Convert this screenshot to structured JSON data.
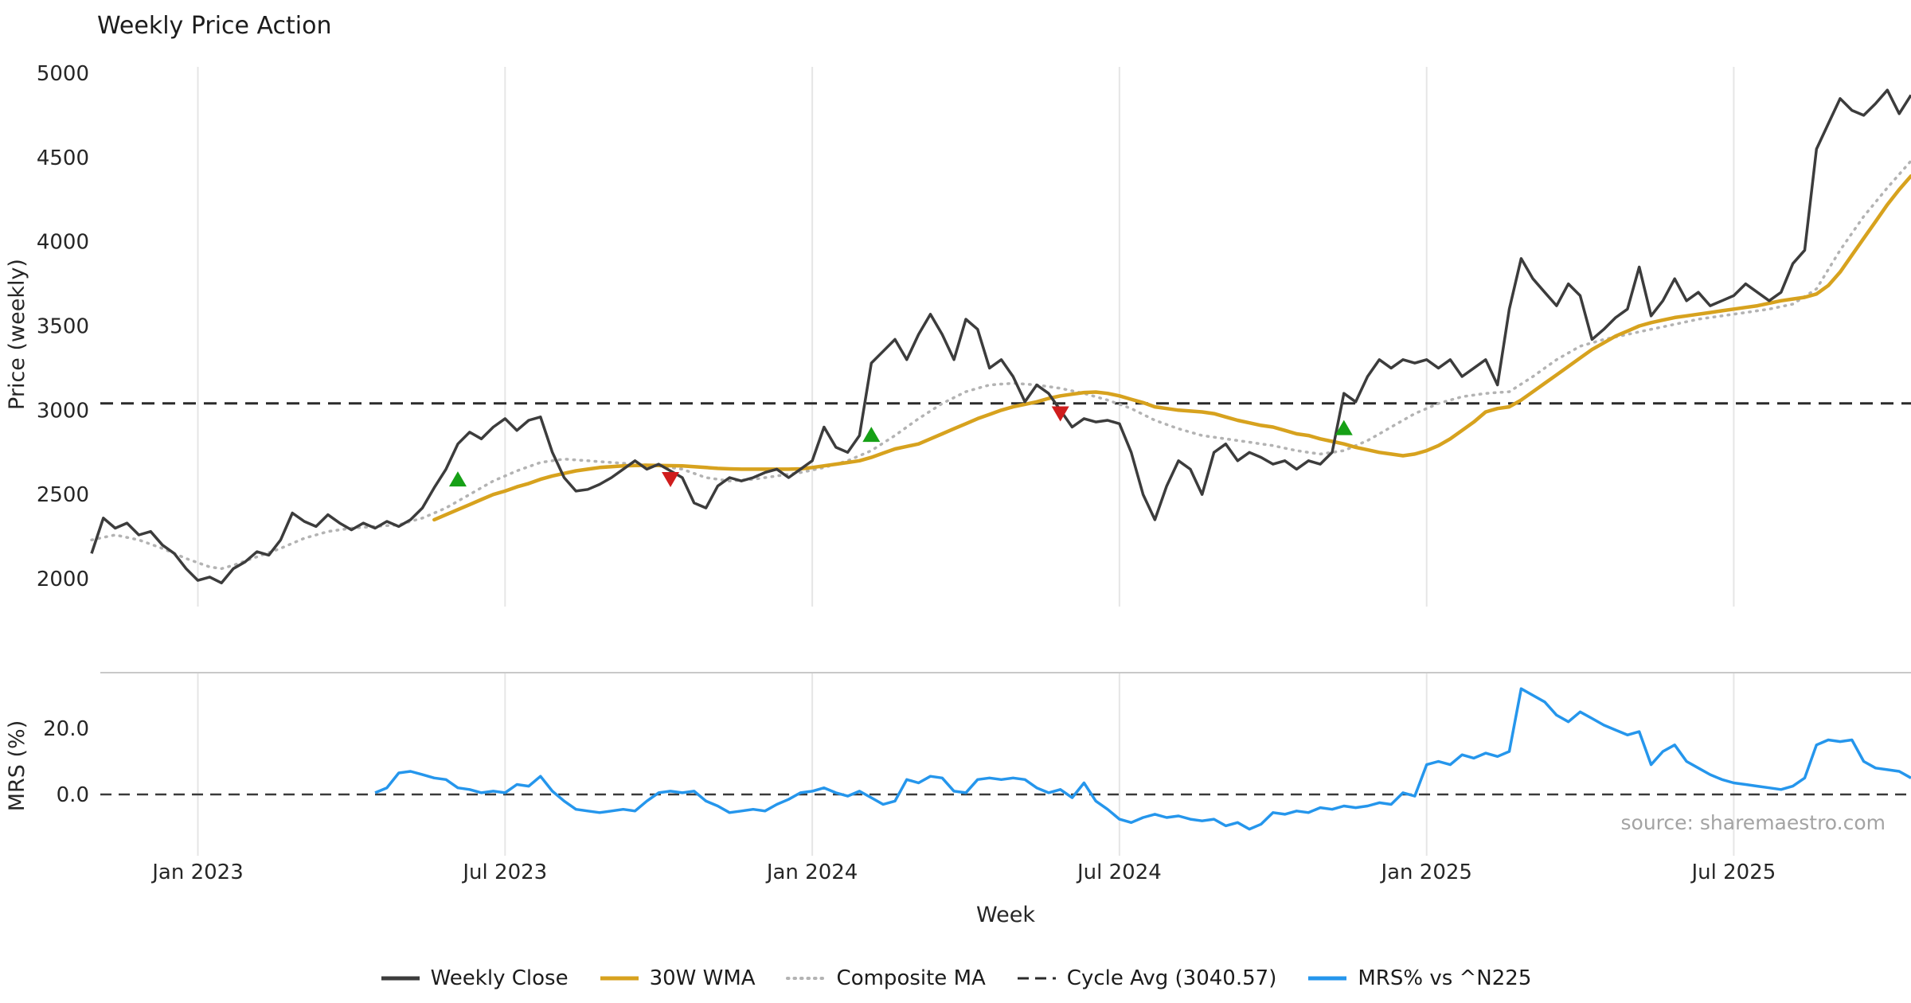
{
  "title": "Weekly Price Action",
  "axes": {
    "price_axis_label": "Price (weekly)",
    "mrs_axis_label": "MRS (%)",
    "x_axis_label": "Week"
  },
  "source_text": "source: sharemaestro.com",
  "colors": {
    "weekly_close": "#3c3c3c",
    "wma_30w": "#d7a21e",
    "composite_ma": "#b3b3b3",
    "cycle_avg": "#2b2b2b",
    "mrs": "#2596ec",
    "buy_marker": "#16a016",
    "sell_marker": "#cf1d1d",
    "grid": "#e6e6e6",
    "panel_border": "#c9c9c9",
    "zero_line": "#3a3a3a",
    "tick_text": "#262626",
    "source_color": "#a3a3a3"
  },
  "legend": {
    "items": [
      {
        "key": "weekly-close",
        "label": "Weekly Close",
        "style": "solid",
        "color_key": "weekly_close"
      },
      {
        "key": "wma-30w",
        "label": "30W WMA",
        "style": "solid",
        "color_key": "wma_30w"
      },
      {
        "key": "composite-ma",
        "label": "Composite MA",
        "style": "dotted",
        "color_key": "composite_ma"
      },
      {
        "key": "cycle-avg",
        "label": "Cycle Avg (3040.57)",
        "style": "dashed",
        "color_key": "cycle_avg"
      },
      {
        "key": "mrs",
        "label": "MRS% vs ^N225",
        "style": "solid",
        "color_key": "mrs"
      }
    ]
  },
  "chart_data": {
    "type": "line",
    "x_unit": "week_index",
    "n_weeks": 155,
    "grid": "vertical-only",
    "legend_position": "bottom-center",
    "x_ticks": [
      {
        "label": "Jan 2023",
        "week": 9
      },
      {
        "label": "Jul 2023",
        "week": 35
      },
      {
        "label": "Jan 2024",
        "week": 61
      },
      {
        "label": "Jul 2024",
        "week": 87
      },
      {
        "label": "Jan 2025",
        "week": 113
      },
      {
        "label": "Jul 2025",
        "week": 139
      }
    ],
    "price_panel": {
      "ylabel": "Price (weekly)",
      "ylim": [
        1900,
        5060
      ],
      "yticks": [
        2000,
        2500,
        3000,
        3500,
        4000,
        4500,
        5000
      ],
      "cycle_avg": 3040.57,
      "series": [
        {
          "name": "Weekly Close",
          "start_week": 0,
          "values": [
            2150,
            2360,
            2300,
            2330,
            2260,
            2280,
            2200,
            2150,
            2060,
            1990,
            2010,
            1975,
            2060,
            2100,
            2160,
            2140,
            2230,
            2390,
            2340,
            2310,
            2380,
            2330,
            2290,
            2330,
            2300,
            2340,
            2310,
            2350,
            2420,
            2540,
            2650,
            2800,
            2870,
            2830,
            2900,
            2950,
            2880,
            2940,
            2960,
            2750,
            2600,
            2520,
            2530,
            2560,
            2600,
            2650,
            2700,
            2650,
            2680,
            2640,
            2600,
            2450,
            2420,
            2550,
            2600,
            2580,
            2600,
            2630,
            2650,
            2600,
            2650,
            2700,
            2900,
            2780,
            2750,
            2850,
            3280,
            3350,
            3420,
            3300,
            3450,
            3570,
            3450,
            3300,
            3540,
            3480,
            3250,
            3300,
            3200,
            3050,
            3150,
            3100,
            3000,
            2900,
            2950,
            2930,
            2940,
            2920,
            2750,
            2500,
            2350,
            2550,
            2700,
            2650,
            2500,
            2750,
            2800,
            2700,
            2750,
            2720,
            2680,
            2700,
            2650,
            2700,
            2680,
            2750,
            3100,
            3050,
            3200,
            3300,
            3250,
            3300,
            3280,
            3300,
            3250,
            3300,
            3200,
            3250,
            3300,
            3150,
            3600,
            3900,
            3780,
            3700,
            3620,
            3750,
            3680,
            3420,
            3480,
            3550,
            3600,
            3850,
            3560,
            3650,
            3780,
            3650,
            3700,
            3620,
            3650,
            3680,
            3750,
            3700,
            3650,
            3700,
            3870,
            3950,
            4550,
            4700,
            4850,
            4780,
            4750,
            4820,
            4900,
            4760,
            4870
          ]
        },
        {
          "name": "30W WMA",
          "start_week": 29,
          "values": [
            2350,
            2380,
            2410,
            2440,
            2470,
            2500,
            2520,
            2545,
            2565,
            2590,
            2610,
            2625,
            2640,
            2650,
            2660,
            2665,
            2670,
            2672,
            2673,
            2672,
            2671,
            2670,
            2665,
            2660,
            2655,
            2652,
            2650,
            2650,
            2650,
            2650,
            2650,
            2652,
            2660,
            2670,
            2680,
            2690,
            2700,
            2720,
            2745,
            2770,
            2785,
            2800,
            2830,
            2860,
            2890,
            2920,
            2950,
            2975,
            3000,
            3020,
            3035,
            3050,
            3070,
            3085,
            3095,
            3105,
            3108,
            3100,
            3085,
            3065,
            3045,
            3020,
            3010,
            3000,
            2995,
            2990,
            2980,
            2960,
            2940,
            2925,
            2910,
            2900,
            2880,
            2860,
            2850,
            2830,
            2815,
            2800,
            2780,
            2765,
            2750,
            2740,
            2730,
            2740,
            2760,
            2790,
            2830,
            2880,
            2930,
            2990,
            3010,
            3020,
            3060,
            3110,
            3160,
            3210,
            3260,
            3310,
            3360,
            3400,
            3440,
            3470,
            3500,
            3520,
            3535,
            3550,
            3560,
            3570,
            3580,
            3590,
            3600,
            3610,
            3620,
            3635,
            3650,
            3660,
            3670,
            3690,
            3740,
            3820,
            3920,
            4020,
            4120,
            4220,
            4310,
            4390
          ]
        },
        {
          "name": "Composite MA",
          "start_week": 0,
          "values": [
            2230,
            2245,
            2260,
            2245,
            2230,
            2205,
            2180,
            2150,
            2120,
            2095,
            2070,
            2060,
            2080,
            2105,
            2130,
            2155,
            2180,
            2210,
            2240,
            2260,
            2280,
            2290,
            2300,
            2305,
            2310,
            2315,
            2320,
            2340,
            2360,
            2390,
            2420,
            2460,
            2500,
            2540,
            2580,
            2610,
            2640,
            2665,
            2690,
            2700,
            2710,
            2705,
            2700,
            2695,
            2690,
            2685,
            2680,
            2675,
            2670,
            2660,
            2650,
            2625,
            2600,
            2590,
            2580,
            2585,
            2590,
            2600,
            2610,
            2620,
            2630,
            2645,
            2660,
            2680,
            2700,
            2730,
            2760,
            2805,
            2850,
            2900,
            2950,
            2995,
            3040,
            3075,
            3110,
            3130,
            3150,
            3155,
            3160,
            3155,
            3150,
            3140,
            3130,
            3115,
            3100,
            3080,
            3060,
            3035,
            3010,
            2975,
            2940,
            2915,
            2890,
            2870,
            2850,
            2840,
            2830,
            2820,
            2810,
            2800,
            2790,
            2775,
            2760,
            2750,
            2740,
            2750,
            2760,
            2790,
            2820,
            2860,
            2900,
            2940,
            2980,
            3010,
            3040,
            3060,
            3080,
            3090,
            3100,
            3105,
            3110,
            3155,
            3200,
            3250,
            3300,
            3340,
            3380,
            3400,
            3420,
            3435,
            3450,
            3465,
            3480,
            3495,
            3510,
            3525,
            3540,
            3550,
            3560,
            3570,
            3580,
            3590,
            3600,
            3615,
            3630,
            3675,
            3720,
            3835,
            3950,
            4050,
            4150,
            4235,
            4320,
            4400,
            4480
          ]
        }
      ],
      "buy_signals": [
        {
          "week": 31,
          "price": 2585
        },
        {
          "week": 66,
          "price": 2850
        },
        {
          "week": 106,
          "price": 2890
        }
      ],
      "sell_signals": [
        {
          "week": 49,
          "price": 2595
        },
        {
          "week": 82,
          "price": 2985
        }
      ]
    },
    "mrs_panel": {
      "ylabel": "MRS (%)",
      "ylim": [
        -19,
        37
      ],
      "yticks": [
        {
          "v": 0,
          "label": "0.0"
        },
        {
          "v": 20,
          "label": "20.0"
        }
      ],
      "zero_line": 0,
      "series": [
        {
          "name": "MRS% vs ^N225",
          "start_week": 24,
          "values": [
            0.5,
            2,
            6.5,
            7,
            6,
            5,
            4.5,
            2,
            1.5,
            0.5,
            1,
            0.5,
            3,
            2.5,
            5.5,
            1,
            -2,
            -4.5,
            -5,
            -5.5,
            -5,
            -4.5,
            -5,
            -2,
            0.5,
            1,
            0.5,
            1,
            -2,
            -3.5,
            -5.5,
            -5,
            -4.5,
            -5,
            -3,
            -1.5,
            0.5,
            1,
            2,
            0.5,
            -0.5,
            1,
            -1,
            -3,
            -2,
            4.5,
            3.5,
            5.5,
            5,
            1,
            0.5,
            4.5,
            5,
            4.5,
            5,
            4.5,
            2,
            0.5,
            1.5,
            -1,
            3.5,
            -2,
            -4.5,
            -7.5,
            -8.5,
            -7,
            -6,
            -7,
            -6.5,
            -7.5,
            -8,
            -7.5,
            -9.5,
            -8.5,
            -10.5,
            -9,
            -5.5,
            -6,
            -5,
            -5.5,
            -4,
            -4.5,
            -3.5,
            -4,
            -3.5,
            -2.5,
            -3,
            0.5,
            -0.5,
            9,
            10,
            9,
            12,
            11,
            12.5,
            11.5,
            13,
            32,
            30,
            28,
            24,
            22,
            25,
            23,
            21,
            19.5,
            18,
            19,
            9,
            13,
            15,
            10,
            8,
            6,
            4.5,
            3.5,
            3,
            2.5,
            2,
            1.5,
            2.5,
            5,
            15,
            16.5,
            16,
            16.5,
            10,
            8,
            7.5,
            7,
            5
          ]
        }
      ]
    }
  }
}
